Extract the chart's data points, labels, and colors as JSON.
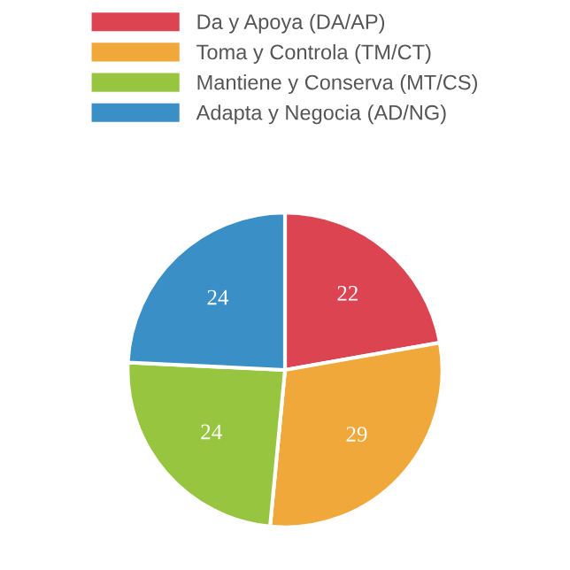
{
  "chart_data": {
    "type": "pie",
    "categories": [
      "Da y Apoya (DA/AP)",
      "Toma y Controla (TM/CT)",
      "Mantiene y Conserva (MT/CS)",
      "Adapta y Negocia (AD/NG)"
    ],
    "values": [
      22,
      29,
      24,
      24
    ],
    "colors": [
      "#dc4452",
      "#f0a83a",
      "#97c53f",
      "#3a8fc6"
    ],
    "data_labels": true,
    "legend": "top"
  }
}
